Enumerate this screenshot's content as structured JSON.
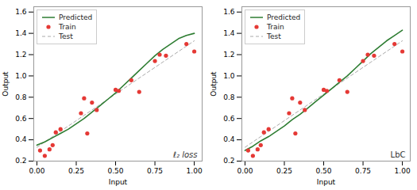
{
  "chart_data": [
    {
      "type": "line",
      "annotation": "ℓ₂ loss",
      "xlabel": "Input",
      "ylabel": "Output",
      "xlim": [
        -0.02,
        1.05
      ],
      "ylim": [
        0.2,
        1.65
      ],
      "xticks": [
        {
          "value": 0.0,
          "label": "0.00"
        },
        {
          "value": 0.25,
          "label": "0.25"
        },
        {
          "value": 0.5,
          "label": "0.50"
        },
        {
          "value": 0.75,
          "label": "0.75"
        },
        {
          "value": 1.0,
          "label": "1.00"
        }
      ],
      "yticks": [
        0.2,
        0.4,
        0.6,
        0.8,
        {
          "value": 1.0,
          "label": "1.0"
        },
        1.2,
        1.4,
        1.6
      ],
      "grid": false,
      "legend": "upper left",
      "series": [
        {
          "name": "Predicted",
          "type": "line",
          "line_style": "solid",
          "color": "#2e7d32",
          "x": [
            0.0,
            0.05,
            0.1,
            0.15,
            0.2,
            0.25,
            0.3,
            0.35,
            0.4,
            0.45,
            0.5,
            0.55,
            0.6,
            0.65,
            0.7,
            0.75,
            0.8,
            0.85,
            0.9,
            0.95,
            1.0
          ],
          "values": [
            0.35,
            0.38,
            0.42,
            0.46,
            0.5,
            0.55,
            0.6,
            0.66,
            0.72,
            0.78,
            0.84,
            0.91,
            0.98,
            1.05,
            1.12,
            1.19,
            1.25,
            1.3,
            1.35,
            1.38,
            1.4
          ]
        },
        {
          "name": "Train",
          "type": "scatter",
          "marker": "o",
          "color": "#e53935",
          "x": [
            0.02,
            0.05,
            0.08,
            0.1,
            0.12,
            0.15,
            0.28,
            0.3,
            0.32,
            0.35,
            0.38,
            0.5,
            0.52,
            0.6,
            0.65,
            0.75,
            0.78,
            0.82,
            0.95,
            1.0
          ],
          "values": [
            0.3,
            0.25,
            0.31,
            0.35,
            0.47,
            0.5,
            0.65,
            0.79,
            0.46,
            0.75,
            0.68,
            0.87,
            0.86,
            0.96,
            0.85,
            1.14,
            1.2,
            1.19,
            1.3,
            1.23
          ]
        },
        {
          "name": "Test",
          "type": "line",
          "line_style": "dashed",
          "color": "#aaaaaa",
          "x": [
            0.0,
            0.1,
            0.2,
            0.3,
            0.4,
            0.5,
            0.6,
            0.7,
            0.8,
            0.9,
            1.0
          ],
          "values": [
            0.33,
            0.43,
            0.53,
            0.63,
            0.73,
            0.83,
            0.93,
            1.03,
            1.13,
            1.23,
            1.33
          ]
        }
      ]
    },
    {
      "type": "line",
      "annotation": "LbC",
      "xlabel": "Input",
      "ylabel": "Output",
      "xlim": [
        -0.02,
        1.05
      ],
      "ylim": [
        0.2,
        1.65
      ],
      "xticks": [
        {
          "value": 0.0,
          "label": "0.00"
        },
        {
          "value": 0.25,
          "label": "0.25"
        },
        {
          "value": 0.5,
          "label": "0.50"
        },
        {
          "value": 0.75,
          "label": "0.75"
        },
        {
          "value": 1.0,
          "label": "1.00"
        }
      ],
      "yticks": [
        0.2,
        0.4,
        0.6,
        0.8,
        {
          "value": 1.0,
          "label": "1.0"
        },
        1.2,
        1.4,
        1.6
      ],
      "grid": false,
      "legend": "upper left",
      "series": [
        {
          "name": "Predicted",
          "type": "line",
          "line_style": "solid",
          "color": "#2e7d32",
          "x": [
            0.0,
            0.05,
            0.1,
            0.15,
            0.2,
            0.25,
            0.3,
            0.35,
            0.4,
            0.45,
            0.5,
            0.55,
            0.6,
            0.65,
            0.7,
            0.75,
            0.8,
            0.85,
            0.9,
            0.95,
            1.0
          ],
          "values": [
            0.3,
            0.34,
            0.39,
            0.43,
            0.48,
            0.53,
            0.59,
            0.64,
            0.7,
            0.76,
            0.82,
            0.88,
            0.94,
            1.0,
            1.07,
            1.14,
            1.21,
            1.27,
            1.33,
            1.38,
            1.43
          ]
        },
        {
          "name": "Train",
          "type": "scatter",
          "marker": "o",
          "color": "#e53935",
          "x": [
            0.02,
            0.05,
            0.08,
            0.1,
            0.12,
            0.15,
            0.28,
            0.3,
            0.32,
            0.35,
            0.38,
            0.5,
            0.52,
            0.6,
            0.65,
            0.75,
            0.78,
            0.82,
            0.95,
            1.0
          ],
          "values": [
            0.3,
            0.25,
            0.31,
            0.35,
            0.47,
            0.5,
            0.65,
            0.79,
            0.46,
            0.75,
            0.68,
            0.87,
            0.86,
            0.96,
            0.85,
            1.14,
            1.2,
            1.19,
            1.3,
            1.23
          ]
        },
        {
          "name": "Test",
          "type": "line",
          "line_style": "dashed",
          "color": "#aaaaaa",
          "x": [
            0.0,
            0.1,
            0.2,
            0.3,
            0.4,
            0.5,
            0.6,
            0.7,
            0.8,
            0.9,
            1.0
          ],
          "values": [
            0.33,
            0.43,
            0.53,
            0.63,
            0.73,
            0.83,
            0.93,
            1.03,
            1.13,
            1.23,
            1.33
          ]
        }
      ]
    }
  ]
}
